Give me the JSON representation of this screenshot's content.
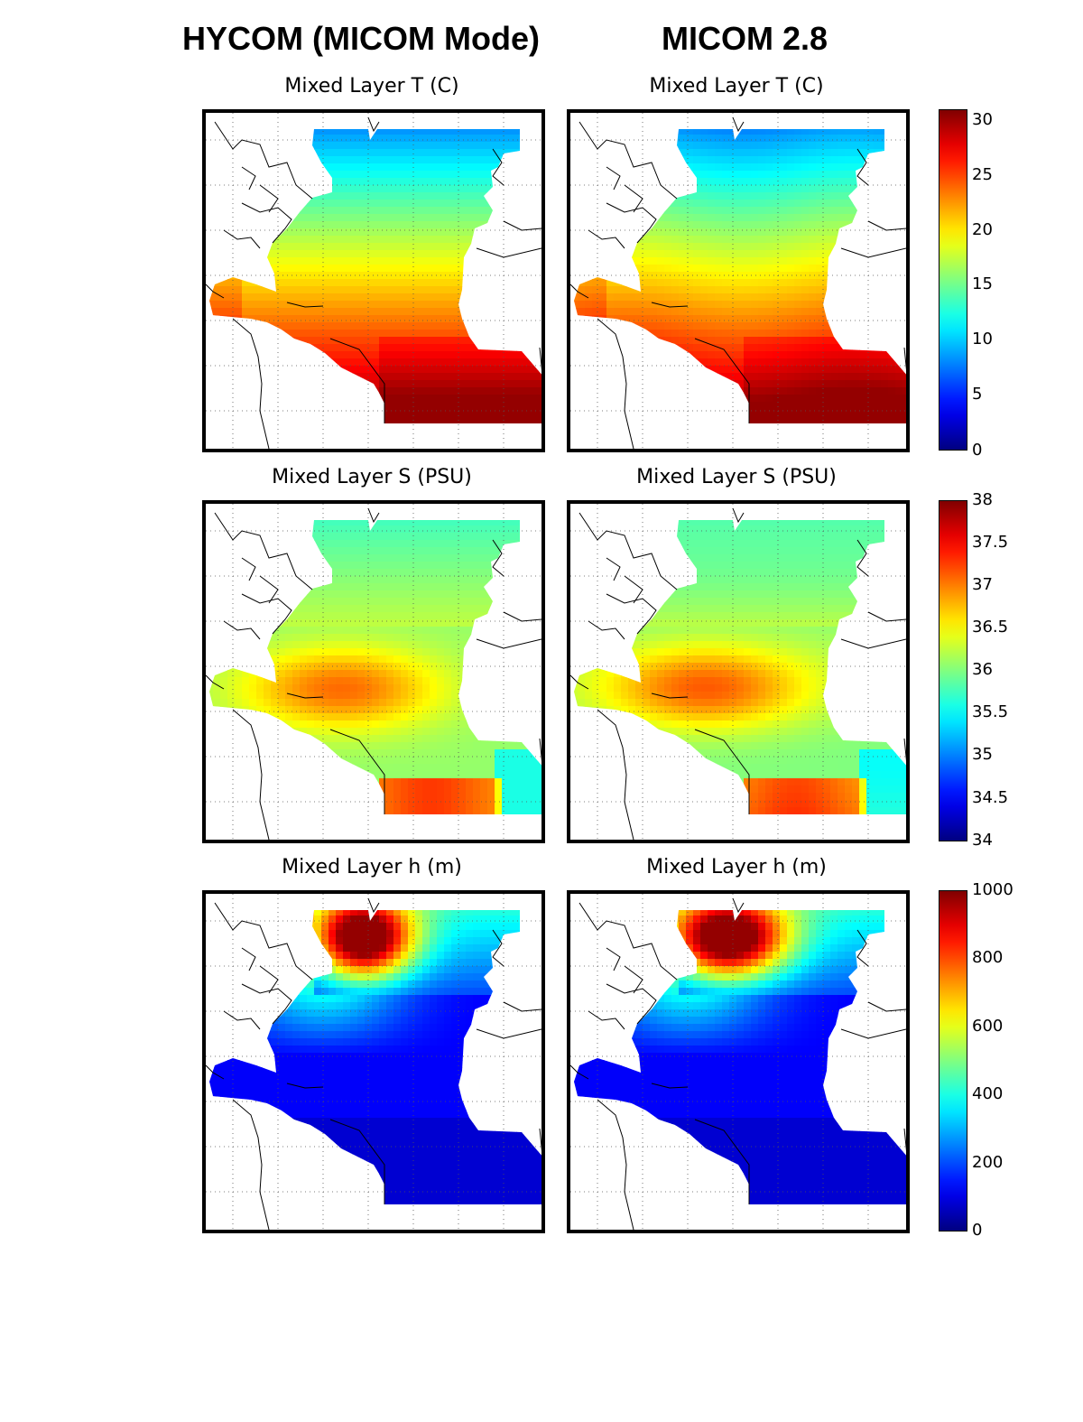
{
  "columns": [
    {
      "title": "HYCOM (MICOM Mode)"
    },
    {
      "title": "MICOM 2.8"
    }
  ],
  "rows": [
    {
      "title": "Mixed Layer T (C)",
      "variable": "temperature",
      "colorbar": {
        "min": 0,
        "max": 31,
        "ticks": [
          "30",
          "25",
          "20",
          "15",
          "10",
          "5",
          "0"
        ]
      }
    },
    {
      "title": "Mixed Layer S (PSU)",
      "variable": "salinity",
      "colorbar": {
        "min": 34,
        "max": 38,
        "ticks": [
          "38",
          "37.5",
          "37",
          "36.5",
          "36",
          "35.5",
          "35",
          "34.5",
          "34"
        ]
      }
    },
    {
      "title": "Mixed Layer h (m)",
      "variable": "depth",
      "colorbar": {
        "min": 0,
        "max": 1000,
        "ticks": [
          "1000",
          "800",
          "600",
          "400",
          "200",
          "0"
        ]
      }
    }
  ],
  "colormap": "jet",
  "colors": {
    "ocean_low": "#00008f",
    "ocean_high": "#8f0000",
    "land": "#ffffff",
    "coastline": "#000000",
    "grid": "#555555"
  }
}
